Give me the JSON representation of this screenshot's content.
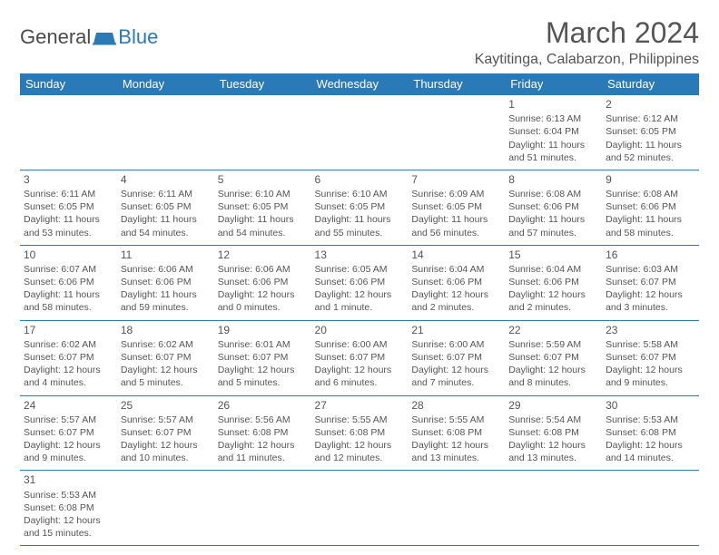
{
  "logo": {
    "word1": "General",
    "word2": "Blue"
  },
  "title": "March 2024",
  "subtitle": "Kaytitinga, Calabarzon, Philippines",
  "colors": {
    "header_bg": "#2a7ab8",
    "text": "#555555",
    "accent": "#2a7ab8"
  },
  "day_headers": [
    "Sunday",
    "Monday",
    "Tuesday",
    "Wednesday",
    "Thursday",
    "Friday",
    "Saturday"
  ],
  "weeks": [
    [
      null,
      null,
      null,
      null,
      null,
      {
        "n": "1",
        "sr": "Sunrise: 6:13 AM",
        "ss": "Sunset: 6:04 PM",
        "d1": "Daylight: 11 hours",
        "d2": "and 51 minutes."
      },
      {
        "n": "2",
        "sr": "Sunrise: 6:12 AM",
        "ss": "Sunset: 6:05 PM",
        "d1": "Daylight: 11 hours",
        "d2": "and 52 minutes."
      }
    ],
    [
      {
        "n": "3",
        "sr": "Sunrise: 6:11 AM",
        "ss": "Sunset: 6:05 PM",
        "d1": "Daylight: 11 hours",
        "d2": "and 53 minutes."
      },
      {
        "n": "4",
        "sr": "Sunrise: 6:11 AM",
        "ss": "Sunset: 6:05 PM",
        "d1": "Daylight: 11 hours",
        "d2": "and 54 minutes."
      },
      {
        "n": "5",
        "sr": "Sunrise: 6:10 AM",
        "ss": "Sunset: 6:05 PM",
        "d1": "Daylight: 11 hours",
        "d2": "and 54 minutes."
      },
      {
        "n": "6",
        "sr": "Sunrise: 6:10 AM",
        "ss": "Sunset: 6:05 PM",
        "d1": "Daylight: 11 hours",
        "d2": "and 55 minutes."
      },
      {
        "n": "7",
        "sr": "Sunrise: 6:09 AM",
        "ss": "Sunset: 6:05 PM",
        "d1": "Daylight: 11 hours",
        "d2": "and 56 minutes."
      },
      {
        "n": "8",
        "sr": "Sunrise: 6:08 AM",
        "ss": "Sunset: 6:06 PM",
        "d1": "Daylight: 11 hours",
        "d2": "and 57 minutes."
      },
      {
        "n": "9",
        "sr": "Sunrise: 6:08 AM",
        "ss": "Sunset: 6:06 PM",
        "d1": "Daylight: 11 hours",
        "d2": "and 58 minutes."
      }
    ],
    [
      {
        "n": "10",
        "sr": "Sunrise: 6:07 AM",
        "ss": "Sunset: 6:06 PM",
        "d1": "Daylight: 11 hours",
        "d2": "and 58 minutes."
      },
      {
        "n": "11",
        "sr": "Sunrise: 6:06 AM",
        "ss": "Sunset: 6:06 PM",
        "d1": "Daylight: 11 hours",
        "d2": "and 59 minutes."
      },
      {
        "n": "12",
        "sr": "Sunrise: 6:06 AM",
        "ss": "Sunset: 6:06 PM",
        "d1": "Daylight: 12 hours",
        "d2": "and 0 minutes."
      },
      {
        "n": "13",
        "sr": "Sunrise: 6:05 AM",
        "ss": "Sunset: 6:06 PM",
        "d1": "Daylight: 12 hours",
        "d2": "and 1 minute."
      },
      {
        "n": "14",
        "sr": "Sunrise: 6:04 AM",
        "ss": "Sunset: 6:06 PM",
        "d1": "Daylight: 12 hours",
        "d2": "and 2 minutes."
      },
      {
        "n": "15",
        "sr": "Sunrise: 6:04 AM",
        "ss": "Sunset: 6:06 PM",
        "d1": "Daylight: 12 hours",
        "d2": "and 2 minutes."
      },
      {
        "n": "16",
        "sr": "Sunrise: 6:03 AM",
        "ss": "Sunset: 6:07 PM",
        "d1": "Daylight: 12 hours",
        "d2": "and 3 minutes."
      }
    ],
    [
      {
        "n": "17",
        "sr": "Sunrise: 6:02 AM",
        "ss": "Sunset: 6:07 PM",
        "d1": "Daylight: 12 hours",
        "d2": "and 4 minutes."
      },
      {
        "n": "18",
        "sr": "Sunrise: 6:02 AM",
        "ss": "Sunset: 6:07 PM",
        "d1": "Daylight: 12 hours",
        "d2": "and 5 minutes."
      },
      {
        "n": "19",
        "sr": "Sunrise: 6:01 AM",
        "ss": "Sunset: 6:07 PM",
        "d1": "Daylight: 12 hours",
        "d2": "and 5 minutes."
      },
      {
        "n": "20",
        "sr": "Sunrise: 6:00 AM",
        "ss": "Sunset: 6:07 PM",
        "d1": "Daylight: 12 hours",
        "d2": "and 6 minutes."
      },
      {
        "n": "21",
        "sr": "Sunrise: 6:00 AM",
        "ss": "Sunset: 6:07 PM",
        "d1": "Daylight: 12 hours",
        "d2": "and 7 minutes."
      },
      {
        "n": "22",
        "sr": "Sunrise: 5:59 AM",
        "ss": "Sunset: 6:07 PM",
        "d1": "Daylight: 12 hours",
        "d2": "and 8 minutes."
      },
      {
        "n": "23",
        "sr": "Sunrise: 5:58 AM",
        "ss": "Sunset: 6:07 PM",
        "d1": "Daylight: 12 hours",
        "d2": "and 9 minutes."
      }
    ],
    [
      {
        "n": "24",
        "sr": "Sunrise: 5:57 AM",
        "ss": "Sunset: 6:07 PM",
        "d1": "Daylight: 12 hours",
        "d2": "and 9 minutes."
      },
      {
        "n": "25",
        "sr": "Sunrise: 5:57 AM",
        "ss": "Sunset: 6:07 PM",
        "d1": "Daylight: 12 hours",
        "d2": "and 10 minutes."
      },
      {
        "n": "26",
        "sr": "Sunrise: 5:56 AM",
        "ss": "Sunset: 6:08 PM",
        "d1": "Daylight: 12 hours",
        "d2": "and 11 minutes."
      },
      {
        "n": "27",
        "sr": "Sunrise: 5:55 AM",
        "ss": "Sunset: 6:08 PM",
        "d1": "Daylight: 12 hours",
        "d2": "and 12 minutes."
      },
      {
        "n": "28",
        "sr": "Sunrise: 5:55 AM",
        "ss": "Sunset: 6:08 PM",
        "d1": "Daylight: 12 hours",
        "d2": "and 13 minutes."
      },
      {
        "n": "29",
        "sr": "Sunrise: 5:54 AM",
        "ss": "Sunset: 6:08 PM",
        "d1": "Daylight: 12 hours",
        "d2": "and 13 minutes."
      },
      {
        "n": "30",
        "sr": "Sunrise: 5:53 AM",
        "ss": "Sunset: 6:08 PM",
        "d1": "Daylight: 12 hours",
        "d2": "and 14 minutes."
      }
    ],
    [
      {
        "n": "31",
        "sr": "Sunrise: 5:53 AM",
        "ss": "Sunset: 6:08 PM",
        "d1": "Daylight: 12 hours",
        "d2": "and 15 minutes."
      },
      null,
      null,
      null,
      null,
      null,
      null
    ]
  ]
}
